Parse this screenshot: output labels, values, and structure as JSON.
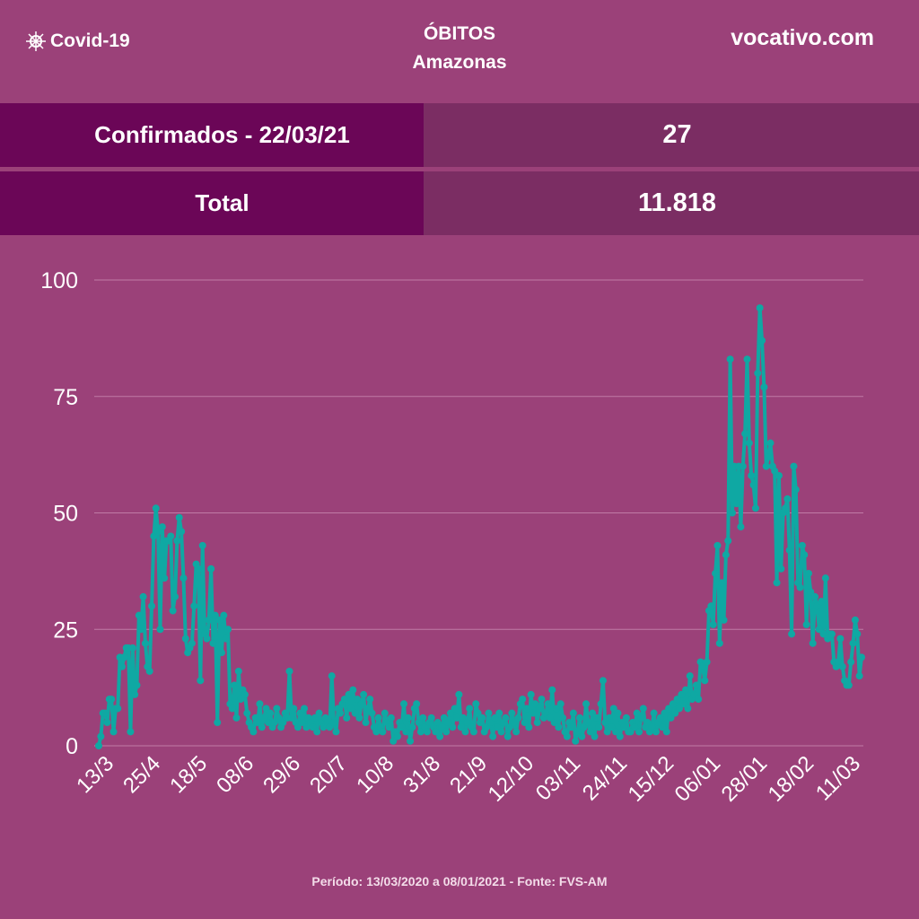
{
  "header": {
    "brand": "Covid-19",
    "brand_icon": "virus-icon",
    "title": "ÓBITOS",
    "subtitle": "Amazonas",
    "site": "vocativo.com"
  },
  "rows": [
    {
      "label": "Confirmados - 22/03/21",
      "value": "27"
    },
    {
      "label": "Total",
      "value": "11.818"
    }
  ],
  "footer": "Período: 13/03/2020 a 08/01/2021 - Fonte: FVS-AM",
  "colors": {
    "background": "#9b4179",
    "row_label": "#6b0657",
    "row_value": "#7b2d63",
    "line": "#0fa8a3"
  },
  "chart_data": {
    "type": "line",
    "title": "",
    "xlabel": "",
    "ylabel": "",
    "ylim": [
      0,
      100
    ],
    "yticks": [
      0,
      25,
      50,
      75,
      100
    ],
    "grid": true,
    "start_date": "13/03/2020",
    "x_tick_labels": [
      "13/3",
      "25/4",
      "18/5",
      "08/6",
      "29/6",
      "20/7",
      "10/8",
      "31/8",
      "21/9",
      "12/10",
      "03/11",
      "24/11",
      "15/12",
      "06/01",
      "28/01",
      "18/02",
      "11/03"
    ],
    "values": [
      0,
      2,
      7,
      7,
      5,
      10,
      10,
      3,
      8,
      8,
      19,
      17,
      19,
      21,
      21,
      3,
      21,
      11,
      13,
      28,
      25,
      32,
      22,
      17,
      16,
      30,
      45,
      51,
      46,
      25,
      47,
      36,
      44,
      44,
      45,
      29,
      32,
      44,
      49,
      46,
      36,
      23,
      20,
      21,
      22,
      30,
      39,
      38,
      14,
      43,
      24,
      23,
      27,
      38,
      22,
      28,
      5,
      27,
      20,
      28,
      23,
      25,
      9,
      8,
      13,
      6,
      16,
      10,
      12,
      11,
      7,
      5,
      4,
      3,
      6,
      5,
      9,
      4,
      6,
      8,
      5,
      7,
      4,
      5,
      8,
      6,
      4,
      5,
      7,
      6,
      16,
      6,
      8,
      5,
      4,
      7,
      5,
      8,
      4,
      6,
      5,
      4,
      6,
      3,
      7,
      5,
      4,
      6,
      5,
      4,
      15,
      5,
      3,
      8,
      7,
      9,
      10,
      6,
      11,
      8,
      12,
      7,
      10,
      6,
      9,
      11,
      5,
      8,
      10,
      7,
      4,
      3,
      6,
      4,
      3,
      7,
      5,
      4,
      6,
      1,
      3,
      2,
      5,
      4,
      9,
      3,
      6,
      1,
      4,
      8,
      9,
      5,
      3,
      6,
      4,
      3,
      5,
      6,
      4,
      3,
      5,
      2,
      4,
      6,
      3,
      5,
      7,
      4,
      8,
      6,
      11,
      4,
      6,
      3,
      5,
      8,
      4,
      3,
      9,
      7,
      5,
      6,
      3,
      4,
      7,
      5,
      2,
      6,
      4,
      7,
      3,
      5,
      6,
      2,
      4,
      7,
      5,
      3,
      6,
      9,
      10,
      5,
      8,
      4,
      11,
      7,
      9,
      5,
      8,
      10,
      6,
      7,
      9,
      6,
      12,
      5,
      8,
      4,
      9,
      6,
      3,
      2,
      5,
      4,
      7,
      1,
      3,
      6,
      2,
      4,
      9,
      5,
      3,
      7,
      2,
      6,
      4,
      9,
      14,
      5,
      3,
      6,
      4,
      8,
      3,
      7,
      2,
      5,
      4,
      6,
      3,
      3,
      5,
      4,
      7,
      3,
      6,
      8,
      4,
      5,
      3,
      4,
      7,
      3,
      5,
      6,
      4,
      7,
      3,
      8,
      6,
      9,
      7,
      10,
      8,
      11,
      9,
      12,
      8,
      15,
      10,
      11,
      13,
      10,
      18,
      17,
      14,
      18,
      29,
      30,
      26,
      37,
      43,
      22,
      35,
      27,
      41,
      44,
      83,
      50,
      60,
      52,
      60,
      47,
      60,
      67,
      83,
      65,
      58,
      56,
      51,
      80,
      94,
      87,
      77,
      60,
      62,
      65,
      60,
      59,
      35,
      58,
      38,
      50,
      51,
      53,
      42,
      24,
      60,
      55,
      35,
      34,
      43,
      41,
      26,
      37,
      33,
      22,
      32,
      30,
      25,
      31,
      24,
      36,
      23,
      24,
      24,
      18,
      17,
      18,
      23,
      17,
      14,
      13,
      13,
      18,
      22,
      27,
      24,
      15,
      19
    ]
  }
}
